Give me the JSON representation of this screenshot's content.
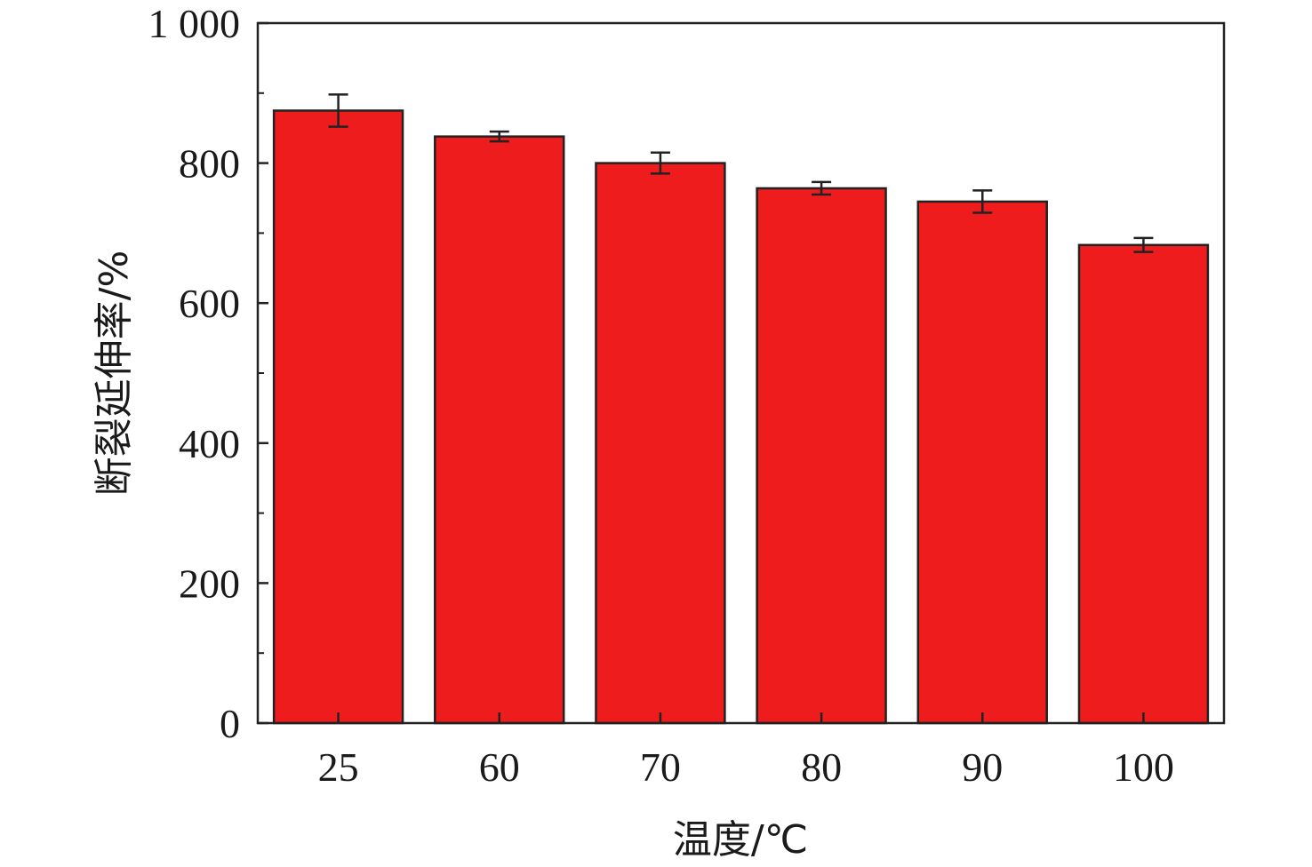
{
  "chart_data": {
    "type": "bar",
    "title": "",
    "xlabel": "温度/℃",
    "ylabel": "断裂延伸率/%",
    "categories": [
      "25",
      "60",
      "70",
      "80",
      "90",
      "100"
    ],
    "values": [
      875,
      838,
      800,
      764,
      745,
      683
    ],
    "errors": [
      23,
      7,
      15,
      9,
      16,
      10
    ],
    "ylim": [
      0,
      1000
    ],
    "yticks": [
      0,
      200,
      400,
      600,
      800,
      1000
    ],
    "ytick_labels": [
      "0",
      "200",
      "400",
      "600",
      "800",
      "1 000"
    ],
    "grid": false,
    "bar_color": "#ee1c1c",
    "edge_color": "#222222"
  }
}
